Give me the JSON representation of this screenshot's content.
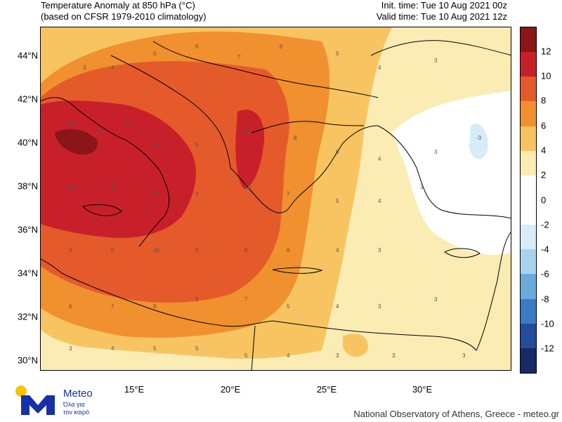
{
  "header": {
    "title_line1": "Temperature Anomaly at 850 hPa (°C)",
    "title_line2": "(based on CFSR 1979-2010 climatology)",
    "init_time": "Init. time: Tue 10 Aug 2021 00z",
    "valid_time": "Valid time: Tue 10 Aug 2021 12z"
  },
  "map": {
    "lat_labels": [
      "44°N",
      "42°N",
      "40°N",
      "38°N",
      "36°N",
      "34°N",
      "32°N",
      "30°N"
    ],
    "lon_labels": [
      "15°E",
      "20°E",
      "25°E",
      "30°E"
    ],
    "lat_range": [
      29.5,
      45.3
    ],
    "lon_range": [
      10.1,
      34.6
    ]
  },
  "colorbar": {
    "levels": [
      "12",
      "10",
      "8",
      "6",
      "4",
      "2",
      "0",
      "-2",
      "-4",
      "-6",
      "-8",
      "-10",
      "-12"
    ],
    "colors": [
      "#8b1518",
      "#c8202a",
      "#e55a2a",
      "#f0902e",
      "#f8c462",
      "#fbecb4",
      "#ffffff",
      "#ffffff",
      "#d6ecf6",
      "#a7d3ef",
      "#6aaadd",
      "#3a7bc4",
      "#234c9c",
      "#172a66"
    ]
  },
  "logo": {
    "name": "Meteo",
    "tagline1": "Όλα για",
    "tagline2": "τον καιρό"
  },
  "footer": {
    "credit": "National Observatory of Athens, Greece - meteo.gr"
  }
}
